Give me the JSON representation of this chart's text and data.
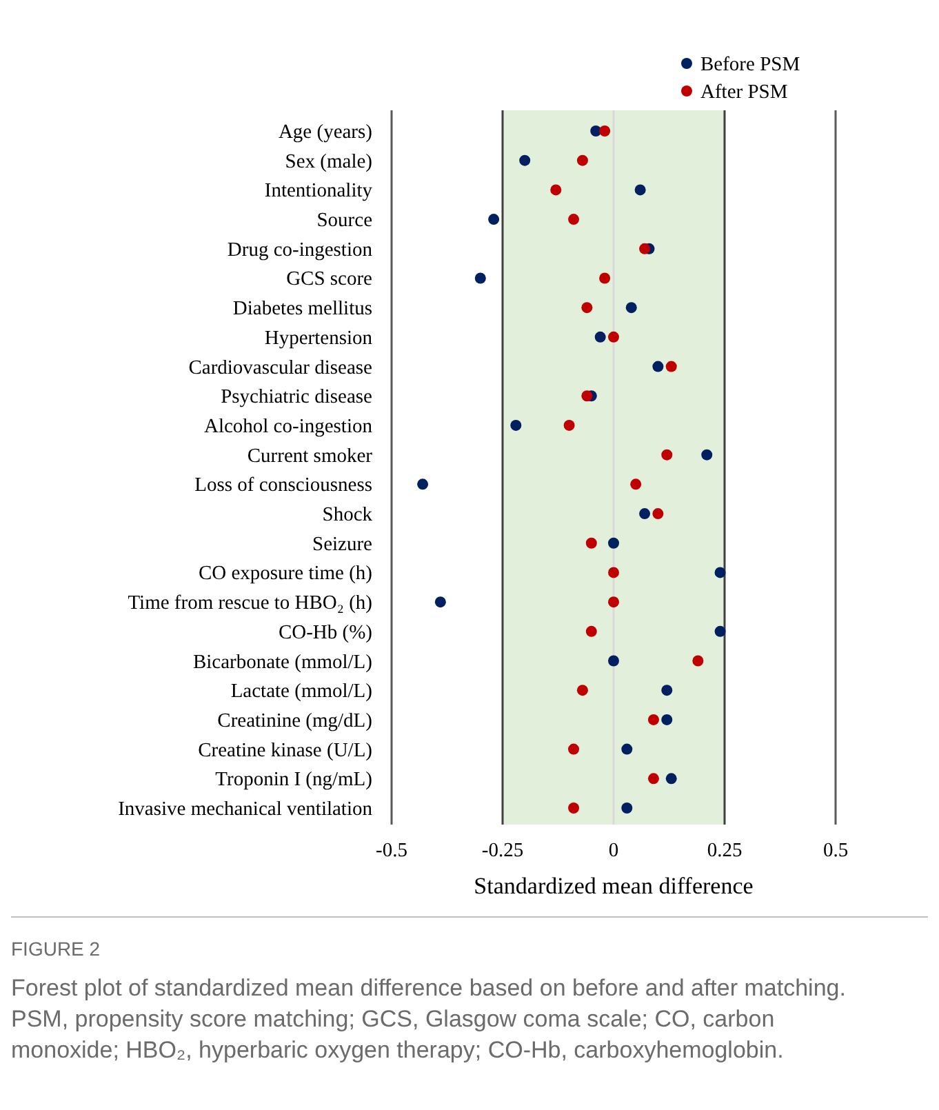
{
  "chart_data": {
    "type": "scatter",
    "xlabel": "Standardized mean difference",
    "orientation": "horizontal",
    "categories": [
      "Age (years)",
      "Sex (male)",
      "Intentionality",
      "Source",
      "Drug co-ingestion",
      "GCS score",
      "Diabetes mellitus",
      "Hypertension",
      "Cardiovascular disease",
      "Psychiatric disease",
      "Alcohol co-ingestion",
      "Current smoker",
      "Loss of consciousness",
      "Shock",
      "Seizure",
      "CO exposure time (h)",
      "Time from rescue to HBO₂ (h)",
      "CO-Hb (%)",
      "Bicarbonate (mmol/L)",
      "Lactate (mmol/L)",
      "Creatinine (mg/dL)",
      "Creatine kinase (U/L)",
      "Troponin I (ng/mL)",
      "Invasive mechanical ventilation"
    ],
    "series": [
      {
        "name": "Before PSM",
        "color": "#002060",
        "values": [
          -0.04,
          -0.2,
          0.06,
          -0.27,
          0.08,
          -0.3,
          0.04,
          -0.03,
          0.1,
          -0.05,
          -0.22,
          0.21,
          -0.43,
          0.07,
          0.0,
          0.24,
          -0.39,
          0.24,
          0.0,
          0.12,
          0.12,
          0.03,
          0.13,
          0.03
        ]
      },
      {
        "name": "After PSM",
        "color": "#c00000",
        "values": [
          -0.02,
          -0.07,
          -0.13,
          -0.09,
          0.07,
          -0.02,
          -0.06,
          0.0,
          0.13,
          -0.06,
          -0.1,
          0.12,
          0.05,
          0.1,
          -0.05,
          0.0,
          0.0,
          -0.05,
          0.19,
          -0.07,
          0.09,
          -0.09,
          0.09,
          -0.09
        ]
      }
    ],
    "xlim": [
      -0.5,
      0.5
    ],
    "xticks": [
      -0.5,
      -0.25,
      0,
      0.25,
      0.5
    ],
    "bands": [
      {
        "axis": "x",
        "from": -0.25,
        "to": 0.25,
        "color": "#e2efda"
      }
    ],
    "ref_lines": [
      {
        "axis": "x",
        "value": -0.25,
        "color": "#404040"
      },
      {
        "axis": "x",
        "value": 0.25,
        "color": "#404040"
      },
      {
        "axis": "x",
        "value": 0,
        "color": "#d9d9d9"
      }
    ],
    "marker": "circle",
    "legend": "top right",
    "annotations": [
      "FIGURE 2",
      "Forest plot of standardized mean difference based on before and after matching. PSM, propensity score matching; GCS, Glasgow coma scale; CO, carbon monoxide; HBO₂, hyperbaric oxygen therapy; CO-Hb, carboxyhemoglobin."
    ]
  }
}
